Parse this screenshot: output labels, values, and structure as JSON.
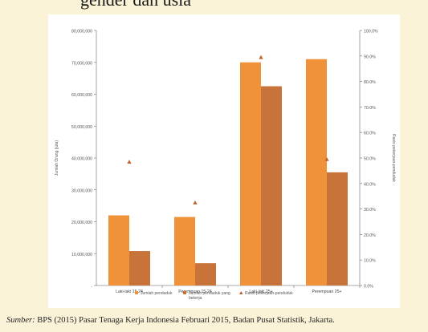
{
  "page": {
    "heading_fragment": "gender dan usia",
    "source_prefix": "Sumber:",
    "source_text": "BPS (2015) Pasar Tenaga Kerja Indonesia Februari 2015, Badan Pusat Statistik, Jakarta."
  },
  "colors": {
    "series_1": "#f0923a",
    "series_2": "#c8733a",
    "ratio": "#c0622a",
    "page_bg": "#fbf3d8",
    "grid": "#bfbfbf"
  },
  "chart_data": {
    "type": "bar",
    "categories": [
      "Laki-laki 15-24",
      "Perempuan 15-24",
      "Laki-laki 25+",
      "Perempuan 25+"
    ],
    "series": [
      {
        "name": "Jumlah penduduk",
        "axis": "left",
        "values": [
          22000000,
          21500000,
          70000000,
          71000000
        ]
      },
      {
        "name": "Jumlah penduduk yang bekerja",
        "axis": "left",
        "values": [
          10800000,
          7000000,
          62500000,
          35500000
        ]
      }
    ],
    "line_series": {
      "name": "Rasio pekerjaan-penduduk",
      "axis": "right",
      "marker": "triangle",
      "values": [
        48.5,
        32.5,
        89.5,
        49.5
      ]
    },
    "left_axis": {
      "label": "Jumlah Orang (juta)",
      "ylim": [
        0,
        80000000
      ],
      "ticks": [
        "-",
        "10,000,000",
        "20,000,000",
        "30,000,000",
        "40,000,000",
        "50,000,000",
        "60,000,000",
        "70,000,000",
        "80,000,000"
      ]
    },
    "right_axis": {
      "label": "Rasio pekerjaan-penduduk",
      "ylim": [
        0,
        100
      ],
      "ticks": [
        "0.0%",
        "10.0%",
        "20.0%",
        "30.0%",
        "40.0%",
        "50.0%",
        "60.0%",
        "70.0%",
        "80.0%",
        "90.0%",
        "100.0%"
      ]
    },
    "grid": false,
    "legend_position": "bottom"
  }
}
